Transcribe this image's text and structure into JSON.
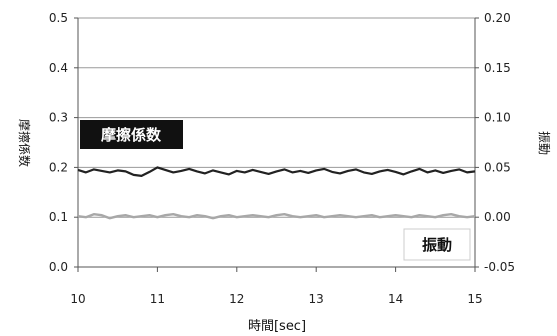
{
  "chart_data": {
    "type": "line",
    "xlabel": "時間[sec]",
    "ylabel_left": "摩擦係数",
    "ylabel_right": "振動",
    "xlim": [
      10,
      15
    ],
    "ylim_left": [
      0.0,
      0.5
    ],
    "ylim_right": [
      -0.05,
      0.2
    ],
    "x_ticks": [
      "10",
      "11",
      "12",
      "13",
      "14",
      "15"
    ],
    "y_left_ticks": [
      "0.0",
      "0.1",
      "0.2",
      "0.3",
      "0.4",
      "0.5"
    ],
    "y_right_ticks": [
      "-0.05",
      "0.00",
      "0.05",
      "0.10",
      "0.15",
      "0.20"
    ],
    "grid": "horizontal",
    "series": [
      {
        "name": "摩擦係数",
        "axis": "left",
        "color": "#222222",
        "x": [
          10.0,
          10.1,
          10.2,
          10.3,
          10.4,
          10.5,
          10.6,
          10.7,
          10.8,
          10.9,
          11.0,
          11.1,
          11.2,
          11.3,
          11.4,
          11.5,
          11.6,
          11.7,
          11.8,
          11.9,
          12.0,
          12.1,
          12.2,
          12.3,
          12.4,
          12.5,
          12.6,
          12.7,
          12.8,
          12.9,
          13.0,
          13.1,
          13.2,
          13.3,
          13.4,
          13.5,
          13.6,
          13.7,
          13.8,
          13.9,
          14.0,
          14.1,
          14.2,
          14.3,
          14.4,
          14.5,
          14.6,
          14.7,
          14.8,
          14.9,
          15.0
        ],
        "values": [
          0.195,
          0.19,
          0.196,
          0.193,
          0.19,
          0.194,
          0.192,
          0.185,
          0.183,
          0.191,
          0.2,
          0.195,
          0.19,
          0.193,
          0.197,
          0.192,
          0.188,
          0.194,
          0.19,
          0.186,
          0.193,
          0.19,
          0.195,
          0.191,
          0.187,
          0.192,
          0.196,
          0.19,
          0.193,
          0.189,
          0.194,
          0.197,
          0.191,
          0.188,
          0.193,
          0.196,
          0.19,
          0.187,
          0.192,
          0.195,
          0.191,
          0.186,
          0.192,
          0.197,
          0.19,
          0.194,
          0.189,
          0.193,
          0.196,
          0.19,
          0.192
        ]
      },
      {
        "name": "振動",
        "axis": "right",
        "color": "#a8a8a8",
        "x": [
          10.0,
          10.1,
          10.2,
          10.3,
          10.4,
          10.5,
          10.6,
          10.7,
          10.8,
          10.9,
          11.0,
          11.1,
          11.2,
          11.3,
          11.4,
          11.5,
          11.6,
          11.7,
          11.8,
          11.9,
          12.0,
          12.1,
          12.2,
          12.3,
          12.4,
          12.5,
          12.6,
          12.7,
          12.8,
          12.9,
          13.0,
          13.1,
          13.2,
          13.3,
          13.4,
          13.5,
          13.6,
          13.7,
          13.8,
          13.9,
          14.0,
          14.1,
          14.2,
          14.3,
          14.4,
          14.5,
          14.6,
          14.7,
          14.8,
          14.9,
          15.0
        ],
        "values": [
          0.001,
          0.0,
          0.003,
          0.002,
          -0.001,
          0.001,
          0.002,
          0.0,
          0.001,
          0.002,
          0.0,
          0.002,
          0.003,
          0.001,
          0.0,
          0.002,
          0.001,
          -0.001,
          0.001,
          0.002,
          0.0,
          0.001,
          0.002,
          0.001,
          0.0,
          0.002,
          0.003,
          0.001,
          0.0,
          0.001,
          0.002,
          0.0,
          0.001,
          0.002,
          0.001,
          0.0,
          0.001,
          0.002,
          0.0,
          0.001,
          0.002,
          0.001,
          0.0,
          0.002,
          0.001,
          0.0,
          0.002,
          0.003,
          0.001,
          0.0,
          0.001
        ]
      }
    ],
    "annotations": [
      {
        "text": "摩擦係数",
        "style": "dark-box"
      },
      {
        "text": "振動",
        "style": "light-box"
      }
    ]
  }
}
